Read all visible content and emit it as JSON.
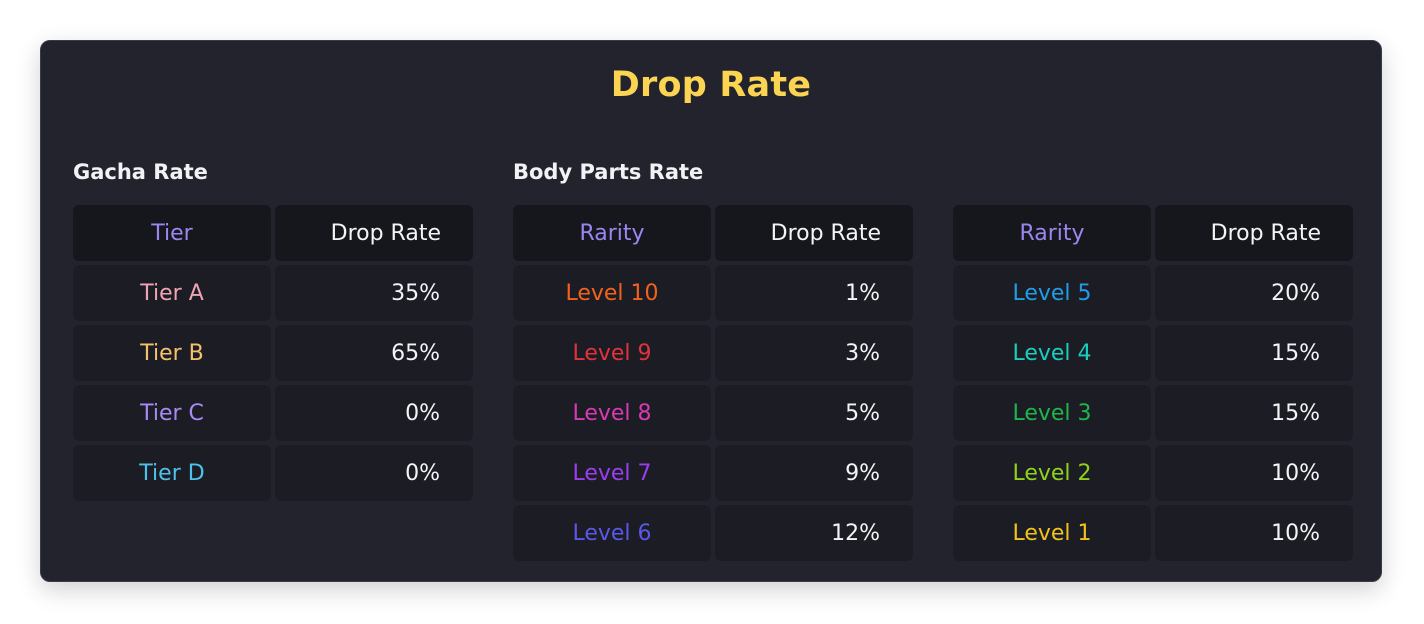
{
  "title": "Drop Rate",
  "gacha": {
    "label": "Gacha Rate",
    "headers": [
      "Tier",
      "Drop Rate"
    ],
    "rows": [
      {
        "name": "Tier A",
        "rate": "35%",
        "color": "#f0a3b4"
      },
      {
        "name": "Tier B",
        "rate": "65%",
        "color": "#f5c26b"
      },
      {
        "name": "Tier C",
        "rate": "0%",
        "color": "#a78bf3"
      },
      {
        "name": "Tier D",
        "rate": "0%",
        "color": "#4fc0ea"
      }
    ]
  },
  "body_parts": {
    "label": "Body Parts Rate",
    "left": {
      "headers": [
        "Rarity",
        "Drop Rate"
      ],
      "rows": [
        {
          "name": "Level 10",
          "rate": "1%",
          "color": "#f2621b"
        },
        {
          "name": "Level 9",
          "rate": "3%",
          "color": "#e2323b"
        },
        {
          "name": "Level 8",
          "rate": "5%",
          "color": "#d73ab2"
        },
        {
          "name": "Level 7",
          "rate": "9%",
          "color": "#9b3df0"
        },
        {
          "name": "Level 6",
          "rate": "12%",
          "color": "#5b57e8"
        }
      ]
    },
    "right": {
      "headers": [
        "Rarity",
        "Drop Rate"
      ],
      "rows": [
        {
          "name": "Level 5",
          "rate": "20%",
          "color": "#1f9de6"
        },
        {
          "name": "Level 4",
          "rate": "15%",
          "color": "#18cfbd"
        },
        {
          "name": "Level 3",
          "rate": "15%",
          "color": "#1fb54b"
        },
        {
          "name": "Level 2",
          "rate": "10%",
          "color": "#8fd21b"
        },
        {
          "name": "Level 1",
          "rate": "10%",
          "color": "#f1c21b"
        }
      ]
    }
  }
}
